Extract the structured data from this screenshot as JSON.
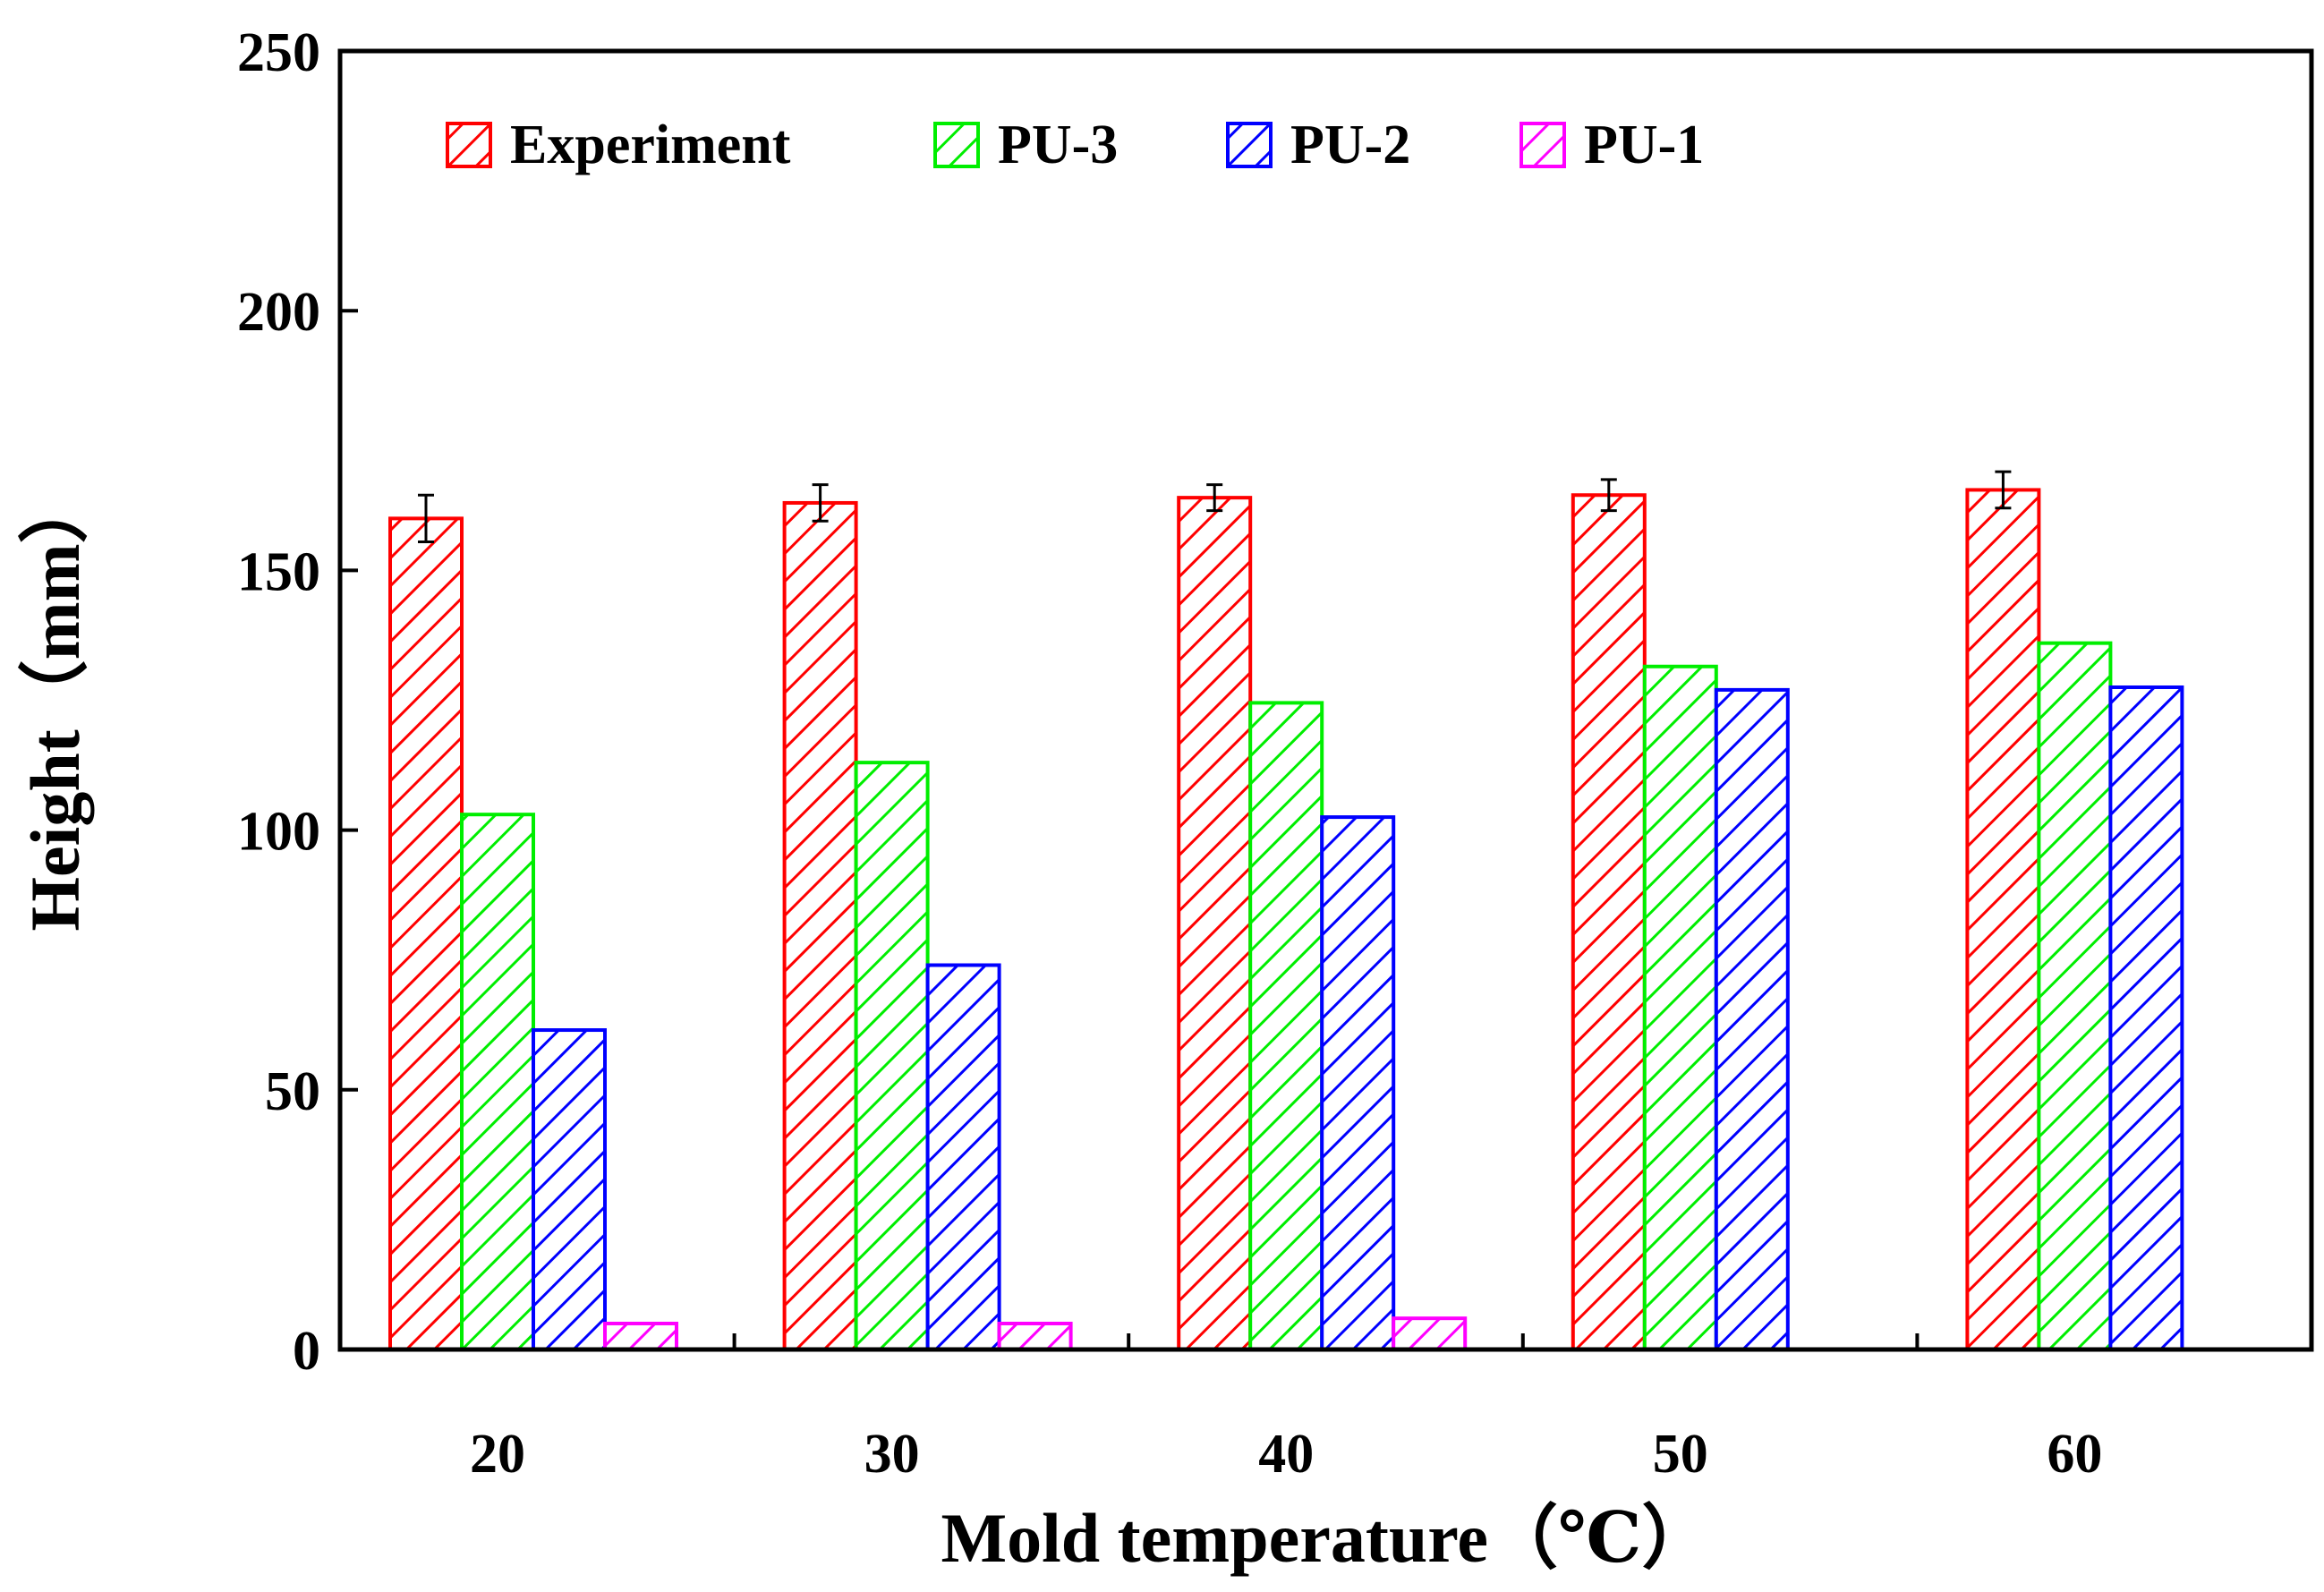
{
  "chart_data": {
    "type": "bar",
    "xlabel": "Mold temperature（℃）",
    "ylabel": "Height（mm）",
    "categories": [
      "20",
      "30",
      "40",
      "50",
      "60"
    ],
    "ylim": [
      0,
      250
    ],
    "yticks": [
      "0",
      "50",
      "100",
      "150",
      "200",
      "250"
    ],
    "grid": false,
    "legend_position": "top-left",
    "series": [
      {
        "name": "Experiment",
        "color": "#ff0000",
        "values": [
          160,
          163,
          164,
          164.5,
          165.5
        ],
        "errors": [
          4.5,
          3.5,
          2.5,
          3,
          3.5
        ]
      },
      {
        "name": "PU-3",
        "color": "#00ee00",
        "values": [
          103,
          113,
          124.5,
          131.5,
          136
        ],
        "errors": null
      },
      {
        "name": "PU-2",
        "color": "#0000ff",
        "values": [
          61.5,
          74,
          102.5,
          127,
          127.5
        ],
        "errors": null
      },
      {
        "name": "PU-1",
        "color": "#ff00ff",
        "values": [
          5,
          5,
          6,
          null,
          null
        ],
        "errors": null
      }
    ]
  }
}
